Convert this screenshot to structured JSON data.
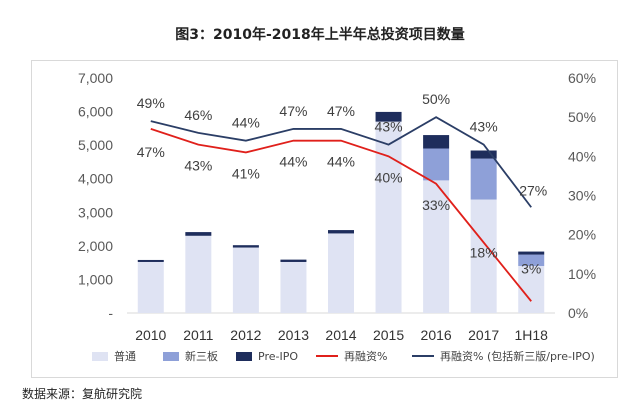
{
  "title": "图3：2010年-2018年上半年总投资项目数量",
  "source": "数据来源：复航研究院",
  "colors": {
    "normal": "#dfe3f3",
    "xinsanban": "#8ea0d8",
    "preipo": "#1e2d5c",
    "refinance": "#e0201b",
    "refinance_all": "#2b3e66",
    "grid": "#d9d9d9",
    "axis_text": "#595959"
  },
  "chart_data": {
    "type": "bar",
    "categories": [
      "2010",
      "2011",
      "2012",
      "2013",
      "2014",
      "2015",
      "2016",
      "2017",
      "1H18"
    ],
    "left_axis": {
      "ylim": [
        0,
        7000
      ],
      "ticks": [
        "-",
        "1,000",
        "2,000",
        "3,000",
        "4,000",
        "5,000",
        "6,000",
        "7,000"
      ]
    },
    "right_axis": {
      "ylim": [
        0,
        60
      ],
      "ticks": [
        "0%",
        "10%",
        "20%",
        "30%",
        "40%",
        "50%",
        "60%"
      ]
    },
    "series": [
      {
        "name": "普通",
        "kind": "bar",
        "stack": "main",
        "values": [
          1520,
          2300,
          1950,
          1520,
          2370,
          5700,
          3950,
          3380,
          1400
        ]
      },
      {
        "name": "新三板",
        "kind": "bar",
        "stack": "main",
        "values": [
          0,
          0,
          0,
          0,
          0,
          0,
          950,
          1220,
          340
        ]
      },
      {
        "name": "Pre-IPO",
        "kind": "bar",
        "stack": "main",
        "values": [
          60,
          110,
          70,
          70,
          100,
          290,
          400,
          240,
          90
        ]
      },
      {
        "name": "再融资%",
        "kind": "line",
        "axis": "right",
        "values": [
          47,
          43,
          41,
          44,
          44,
          40,
          33,
          18,
          3
        ],
        "labels": [
          "47%",
          "43%",
          "41%",
          "44%",
          "44%",
          "40%",
          "33%",
          "18%",
          "3%"
        ]
      },
      {
        "name": "再融资% (包括新三版/pre-IPO)",
        "kind": "line",
        "axis": "right",
        "values": [
          49,
          46,
          44,
          47,
          47,
          43,
          50,
          43,
          27
        ],
        "labels": [
          "49%",
          "46%",
          "44%",
          "47%",
          "47%",
          "43%",
          "50%",
          "43%",
          "27%"
        ]
      }
    ],
    "legend": [
      "普通",
      "新三板",
      "Pre-IPO",
      "再融资%",
      "再融资% (包括新三版/pre-IPO)"
    ],
    "legend_position": "bottom"
  }
}
